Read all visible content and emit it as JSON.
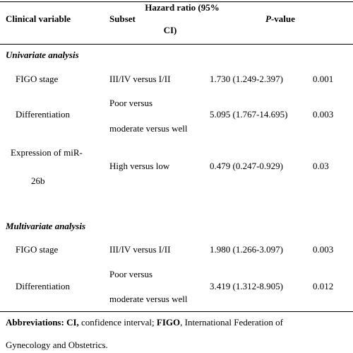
{
  "header": {
    "clinical_variable": "Clinical variable",
    "subset": "Subset",
    "hazard_ratio": [
      "Hazard ratio (95%",
      "CI)"
    ],
    "p_value": {
      "italic": "P",
      "rest": "-value"
    }
  },
  "sections": [
    {
      "title": "Univariate analysis",
      "rows": [
        {
          "variable": [
            "FIGO stage"
          ],
          "subset": [
            "III/IV versus I/II"
          ],
          "hazard_ratio": "1.730 (1.249-2.397)",
          "p_value": "0.001"
        },
        {
          "variable": [
            "Differentiation"
          ],
          "subset": [
            "Poor versus",
            "moderate versus well"
          ],
          "hazard_ratio": "5.095 (1.767-14.695)",
          "p_value": "0.003"
        },
        {
          "variable": [
            "Expression of miR-",
            "26b"
          ],
          "subset": [
            "High versus low"
          ],
          "hazard_ratio": "0.479 (0.247-0.929)",
          "p_value": "0.03"
        }
      ]
    },
    {
      "title": "Multivariate analysis",
      "rows": [
        {
          "variable": [
            "FIGO stage"
          ],
          "subset": [
            "III/IV versus I/II"
          ],
          "hazard_ratio": "1.980 (1.266-3.097)",
          "p_value": "0.003"
        },
        {
          "variable": [
            "Differentiation"
          ],
          "subset": [
            "Poor versus",
            "moderate versus well"
          ],
          "hazard_ratio": "3.419 (1.312-8.905)",
          "p_value": "0.012"
        }
      ]
    }
  ],
  "footnote": [
    {
      "text": "Abbreviations: CI,",
      "bold": true
    },
    {
      "text": " confidence interval; ",
      "bold": false
    },
    {
      "text": "FIGO",
      "bold": true
    },
    {
      "text": ", International Federation of",
      "bold": false
    },
    {
      "text": "Gynecology and Obstetrics.",
      "bold": false
    }
  ]
}
